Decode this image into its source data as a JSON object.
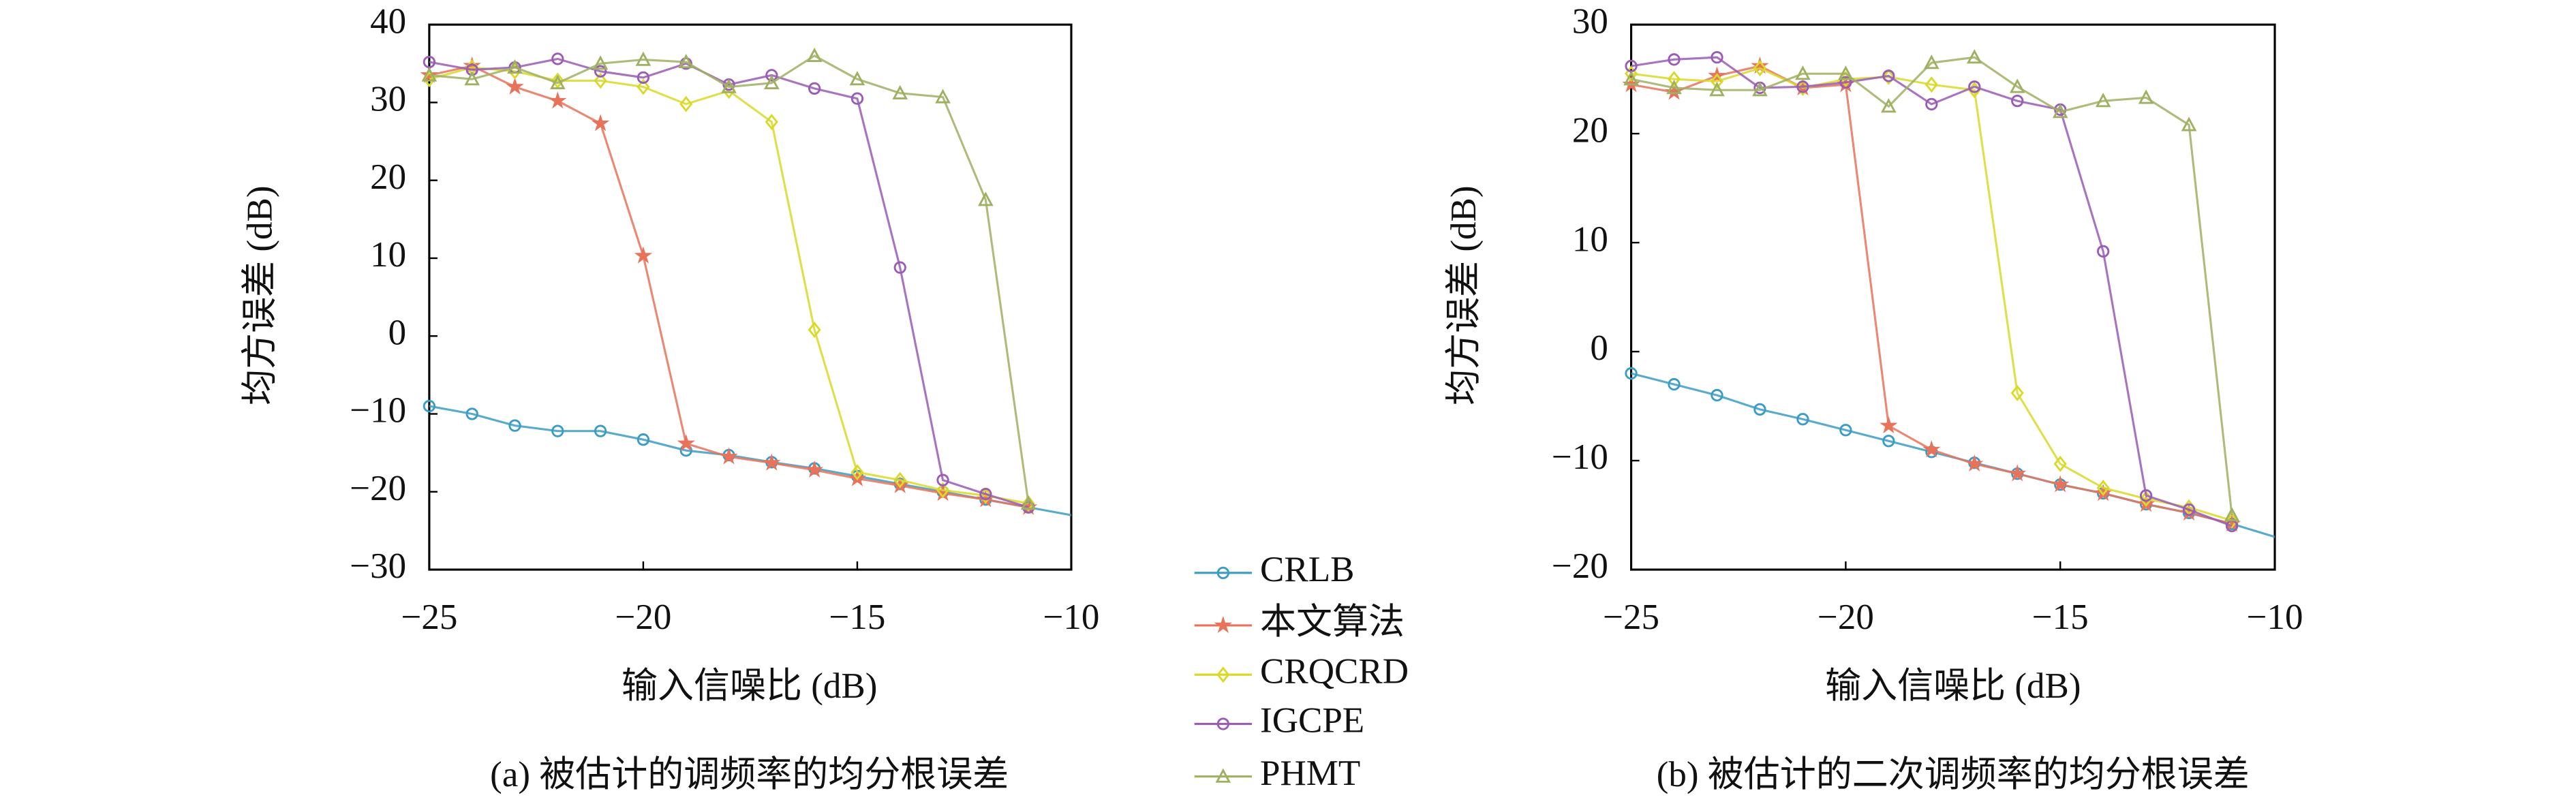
{
  "chart_data": [
    {
      "type": "line",
      "title": "(a) 被估计的调频率的均分根误差",
      "xlabel": "输入信噪比 (dB)",
      "ylabel": "均方误差 (dB)",
      "x": [
        -25,
        -24,
        -23,
        -22,
        -21,
        -20,
        -19,
        -18,
        -17,
        -16,
        -15,
        -14,
        -13,
        -12,
        -11,
        -10
      ],
      "xlim": [
        -25,
        -10
      ],
      "ylim": [
        -30,
        40
      ],
      "xticks": [
        {
          "value": -25,
          "label": "−25"
        },
        {
          "value": -20,
          "label": "−20"
        },
        {
          "value": -15,
          "label": "−15"
        },
        {
          "value": -10,
          "label": "−10"
        }
      ],
      "yticks": [
        {
          "value": -30,
          "label": "−30"
        },
        {
          "value": -20,
          "label": "−20"
        },
        {
          "value": -10,
          "label": "−10"
        },
        0,
        10,
        20,
        30,
        40
      ],
      "series": [
        {
          "name": "CRLB",
          "color": "#3b9cc4",
          "marker": "circle",
          "values": [
            -9,
            -10,
            -11.5,
            -12.2,
            -12.2,
            -13.3,
            -14.7,
            -15.3,
            -16.2,
            -17,
            -18,
            -19,
            -20,
            -21,
            -22,
            -23
          ]
        },
        {
          "name": "本文算法",
          "color": "#e8735a",
          "marker": "star",
          "values": [
            33.5,
            34.7,
            32,
            30.2,
            27.3,
            10.3,
            -13.8,
            -15.5,
            -16.3,
            -17.2,
            -18.3,
            -19.2,
            -20.2,
            -21,
            -22,
            null
          ]
        },
        {
          "name": "CRQCRD",
          "color": "#d9d92a",
          "marker": "diamond",
          "values": [
            33,
            34.5,
            34,
            32.8,
            32.8,
            32,
            29.8,
            31.5,
            27.5,
            0.8,
            -17.5,
            -18.5,
            -19.8,
            -20.5,
            -21.5,
            null
          ]
        },
        {
          "name": "IGCPE",
          "color": "#9a5cb4",
          "marker": "circle",
          "values": [
            35.2,
            34.2,
            34.5,
            35.6,
            34,
            33.2,
            35,
            32.3,
            33.5,
            31.8,
            30.5,
            8.8,
            -18.5,
            -20.3,
            -22,
            null
          ]
        },
        {
          "name": "PHMT",
          "color": "#9fb063",
          "marker": "triangle",
          "values": [
            33.5,
            33,
            34.5,
            32.5,
            35,
            35.5,
            35.2,
            32,
            32.5,
            36,
            33,
            31.2,
            30.7,
            17.5,
            -21.5,
            null
          ]
        }
      ]
    },
    {
      "type": "line",
      "title": "(b) 被估计的二次调频率的均分根误差",
      "xlabel": "输入信噪比 (dB)",
      "ylabel": "均方误差 (dB)",
      "x": [
        -25,
        -24,
        -23,
        -22,
        -21,
        -20,
        -19,
        -18,
        -17,
        -16,
        -15,
        -14,
        -13,
        -12,
        -11,
        -10
      ],
      "xlim": [
        -25,
        -10
      ],
      "ylim": [
        -20,
        30
      ],
      "xticks": [
        {
          "value": -25,
          "label": "−25"
        },
        {
          "value": -20,
          "label": "−20"
        },
        {
          "value": -15,
          "label": "−15"
        },
        {
          "value": -10,
          "label": "−10"
        }
      ],
      "yticks": [
        {
          "value": -20,
          "label": "−20"
        },
        {
          "value": -10,
          "label": "−10"
        },
        0,
        10,
        20,
        30
      ],
      "series": [
        {
          "color": "#3b9cc4",
          "marker": "circle",
          "values": [
            -2,
            -3,
            -4,
            -5.3,
            -6.2,
            -7.2,
            -8.2,
            -9.2,
            -10.2,
            -11.2,
            -12.2,
            -13,
            -14,
            -14.8,
            -15.8,
            -17
          ]
        },
        {
          "color": "#e8735a",
          "marker": "star",
          "values": [
            24.5,
            23.8,
            25.3,
            26.2,
            24.2,
            24.5,
            -6.8,
            -9,
            -10.3,
            -11.2,
            -12.2,
            -13,
            -14,
            -14.8,
            -15.8,
            null
          ]
        },
        {
          "color": "#d9d92a",
          "marker": "diamond",
          "values": [
            25.5,
            25,
            24.8,
            26,
            24.2,
            25,
            25.2,
            24.5,
            24,
            -3.8,
            -10.3,
            -12.5,
            -13.5,
            -14.3,
            -15.5,
            null
          ]
        },
        {
          "color": "#9a5cb4",
          "marker": "circle",
          "values": [
            26.2,
            26.8,
            27,
            24.2,
            24.3,
            24.7,
            25.3,
            22.7,
            24.3,
            23,
            22.2,
            9.2,
            -13.2,
            -14.5,
            -16,
            null
          ]
        },
        {
          "color": "#9fb063",
          "marker": "triangle",
          "values": [
            25,
            24.2,
            24,
            24,
            25.5,
            25.5,
            22.5,
            26.5,
            27,
            24.3,
            22,
            23,
            23.3,
            20.8,
            -15,
            null
          ]
        }
      ]
    }
  ]
}
